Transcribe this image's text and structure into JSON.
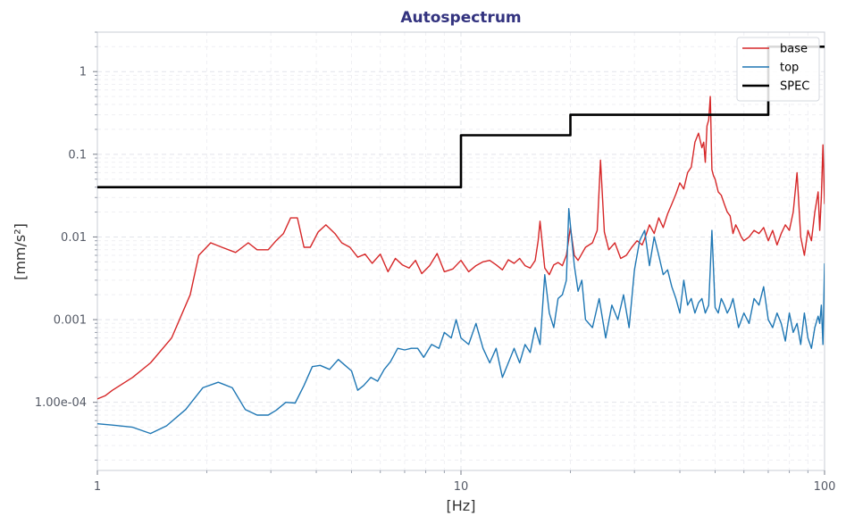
{
  "chart_data": {
    "type": "line",
    "title": "Autospectrum",
    "xlabel": "[Hz]",
    "ylabel": "[mm/s²]",
    "xscale": "log",
    "yscale": "log",
    "xlim": [
      1,
      100
    ],
    "ylim": [
      1.5e-05,
      3
    ],
    "xticks": [
      {
        "value": 1,
        "label": "1"
      },
      {
        "value": 10,
        "label": "10"
      },
      {
        "value": 100,
        "label": "100"
      }
    ],
    "yticks": [
      {
        "value": 0.0001,
        "label": "1.00e-04"
      },
      {
        "value": 0.001,
        "label": "0.001"
      },
      {
        "value": 0.01,
        "label": "0.01"
      },
      {
        "value": 0.1,
        "label": "0.1"
      },
      {
        "value": 1,
        "label": "1"
      }
    ],
    "grid": true,
    "legend_position": "top-right",
    "series": [
      {
        "name": "base",
        "color": "#d62728",
        "x": [
          1,
          1.05,
          1.1,
          1.25,
          1.4,
          1.6,
          1.8,
          1.9,
          2.05,
          2.2,
          2.4,
          2.6,
          2.75,
          2.95,
          3.1,
          3.25,
          3.4,
          3.55,
          3.7,
          3.85,
          4.05,
          4.25,
          4.5,
          4.7,
          4.95,
          5.2,
          5.45,
          5.7,
          6.0,
          6.3,
          6.6,
          6.9,
          7.2,
          7.5,
          7.8,
          8.2,
          8.6,
          9.0,
          9.5,
          10.0,
          10.5,
          11,
          11.5,
          12,
          12.5,
          13,
          13.5,
          14,
          14.5,
          15,
          15.5,
          16,
          16.3,
          16.5,
          17,
          17.5,
          18,
          18.5,
          19,
          19.5,
          20,
          20.5,
          21,
          22,
          23,
          23.7,
          24.2,
          24.8,
          25.5,
          26.5,
          27.5,
          28.5,
          29.5,
          30.5,
          31,
          31.5,
          32,
          33,
          34,
          35,
          36,
          37,
          38,
          39,
          40,
          41,
          42,
          43,
          44,
          45,
          46,
          46.5,
          47,
          47.5,
          48,
          48.5,
          49,
          49.5,
          50,
          51,
          52,
          53,
          54,
          55,
          56,
          57,
          58,
          59,
          60,
          62,
          64,
          66,
          68,
          70,
          72,
          74,
          76,
          78,
          80,
          82,
          84,
          86,
          88,
          90,
          92,
          94,
          96,
          97,
          98,
          99,
          100
        ],
        "y": [
          0.00011,
          0.00012,
          0.00014,
          0.0002,
          0.0003,
          0.0006,
          0.002,
          0.006,
          0.0085,
          0.0075,
          0.0065,
          0.0085,
          0.007,
          0.007,
          0.009,
          0.011,
          0.017,
          0.017,
          0.0075,
          0.0075,
          0.0115,
          0.014,
          0.011,
          0.0085,
          0.0075,
          0.0057,
          0.0062,
          0.0048,
          0.0062,
          0.0038,
          0.0055,
          0.0046,
          0.0042,
          0.0052,
          0.0036,
          0.0045,
          0.0063,
          0.0038,
          0.0041,
          0.0052,
          0.0038,
          0.0045,
          0.005,
          0.0052,
          0.0046,
          0.004,
          0.0053,
          0.0048,
          0.0055,
          0.0045,
          0.0042,
          0.0052,
          0.009,
          0.0155,
          0.0042,
          0.0035,
          0.0046,
          0.0049,
          0.0045,
          0.006,
          0.013,
          0.006,
          0.0052,
          0.0075,
          0.0085,
          0.012,
          0.085,
          0.0115,
          0.007,
          0.0085,
          0.0055,
          0.006,
          0.0075,
          0.009,
          0.0085,
          0.008,
          0.0095,
          0.014,
          0.011,
          0.017,
          0.013,
          0.019,
          0.025,
          0.033,
          0.045,
          0.038,
          0.06,
          0.07,
          0.14,
          0.18,
          0.12,
          0.14,
          0.08,
          0.22,
          0.26,
          0.5,
          0.065,
          0.055,
          0.05,
          0.035,
          0.032,
          0.025,
          0.02,
          0.018,
          0.011,
          0.014,
          0.012,
          0.01,
          0.009,
          0.01,
          0.012,
          0.011,
          0.013,
          0.009,
          0.012,
          0.008,
          0.011,
          0.014,
          0.012,
          0.02,
          0.06,
          0.01,
          0.006,
          0.012,
          0.009,
          0.02,
          0.035,
          0.012,
          0.03,
          0.13,
          0.025
        ]
      },
      {
        "name": "top",
        "color": "#1f77b4",
        "x": [
          1,
          1.1,
          1.25,
          1.4,
          1.55,
          1.75,
          1.95,
          2.15,
          2.35,
          2.55,
          2.75,
          2.95,
          3.1,
          3.3,
          3.5,
          3.7,
          3.9,
          4.1,
          4.35,
          4.6,
          4.8,
          5.0,
          5.2,
          5.4,
          5.65,
          5.9,
          6.15,
          6.4,
          6.7,
          7.0,
          7.3,
          7.6,
          7.9,
          8.3,
          8.7,
          9.0,
          9.4,
          9.7,
          10.0,
          10.5,
          11,
          11.5,
          12,
          12.5,
          13,
          13.5,
          14,
          14.5,
          15,
          15.5,
          16,
          16.5,
          17,
          17.5,
          18,
          18.5,
          19,
          19.5,
          19.8,
          20.5,
          21,
          21.5,
          22,
          23,
          24,
          25,
          26,
          27,
          28,
          29,
          30,
          31,
          32,
          33,
          34,
          35,
          36,
          37,
          38,
          39,
          40,
          41,
          42,
          43,
          44,
          45,
          46,
          47,
          48,
          49,
          50,
          51,
          52,
          53,
          54,
          55,
          56,
          58,
          60,
          62,
          64,
          66,
          68,
          70,
          72,
          74,
          76,
          78,
          80,
          82,
          84,
          86,
          88,
          90,
          92,
          94,
          96,
          97,
          98,
          99,
          100
        ],
        "y": [
          5.5e-05,
          5.3e-05,
          5e-05,
          4.2e-05,
          5.2e-05,
          8.2e-05,
          0.00015,
          0.000175,
          0.00015,
          8.2e-05,
          7e-05,
          7e-05,
          8e-05,
          0.0001,
          9.8e-05,
          0.00016,
          0.00027,
          0.00028,
          0.00025,
          0.00033,
          0.00028,
          0.00024,
          0.00014,
          0.00016,
          0.0002,
          0.00018,
          0.00025,
          0.00031,
          0.00045,
          0.00043,
          0.00045,
          0.00045,
          0.00035,
          0.0005,
          0.00045,
          0.0007,
          0.0006,
          0.001,
          0.0006,
          0.0005,
          0.0009,
          0.00045,
          0.0003,
          0.00045,
          0.0002,
          0.0003,
          0.00045,
          0.0003,
          0.0005,
          0.0004,
          0.0008,
          0.0005,
          0.0035,
          0.0012,
          0.0008,
          0.0018,
          0.002,
          0.003,
          0.022,
          0.0045,
          0.0022,
          0.003,
          0.001,
          0.0008,
          0.0018,
          0.0006,
          0.0015,
          0.001,
          0.002,
          0.0008,
          0.004,
          0.009,
          0.012,
          0.0045,
          0.01,
          0.006,
          0.0035,
          0.004,
          0.0025,
          0.0018,
          0.0012,
          0.003,
          0.0015,
          0.0018,
          0.0012,
          0.0016,
          0.0018,
          0.0012,
          0.0015,
          0.012,
          0.0014,
          0.0012,
          0.0018,
          0.0015,
          0.0012,
          0.0014,
          0.0018,
          0.0008,
          0.0012,
          0.0009,
          0.0018,
          0.0015,
          0.0025,
          0.001,
          0.0008,
          0.0012,
          0.0009,
          0.00055,
          0.0012,
          0.0007,
          0.0009,
          0.0005,
          0.0012,
          0.0006,
          0.00045,
          0.0008,
          0.0011,
          0.0009,
          0.0015,
          0.0005,
          0.0048
        ]
      },
      {
        "name": "SPEC",
        "color": "#000000",
        "step": true,
        "x": [
          1,
          10,
          10,
          20,
          20,
          70,
          70,
          100
        ],
        "y": [
          0.04,
          0.04,
          0.17,
          0.17,
          0.3,
          0.3,
          2.0,
          2.0
        ]
      }
    ]
  }
}
